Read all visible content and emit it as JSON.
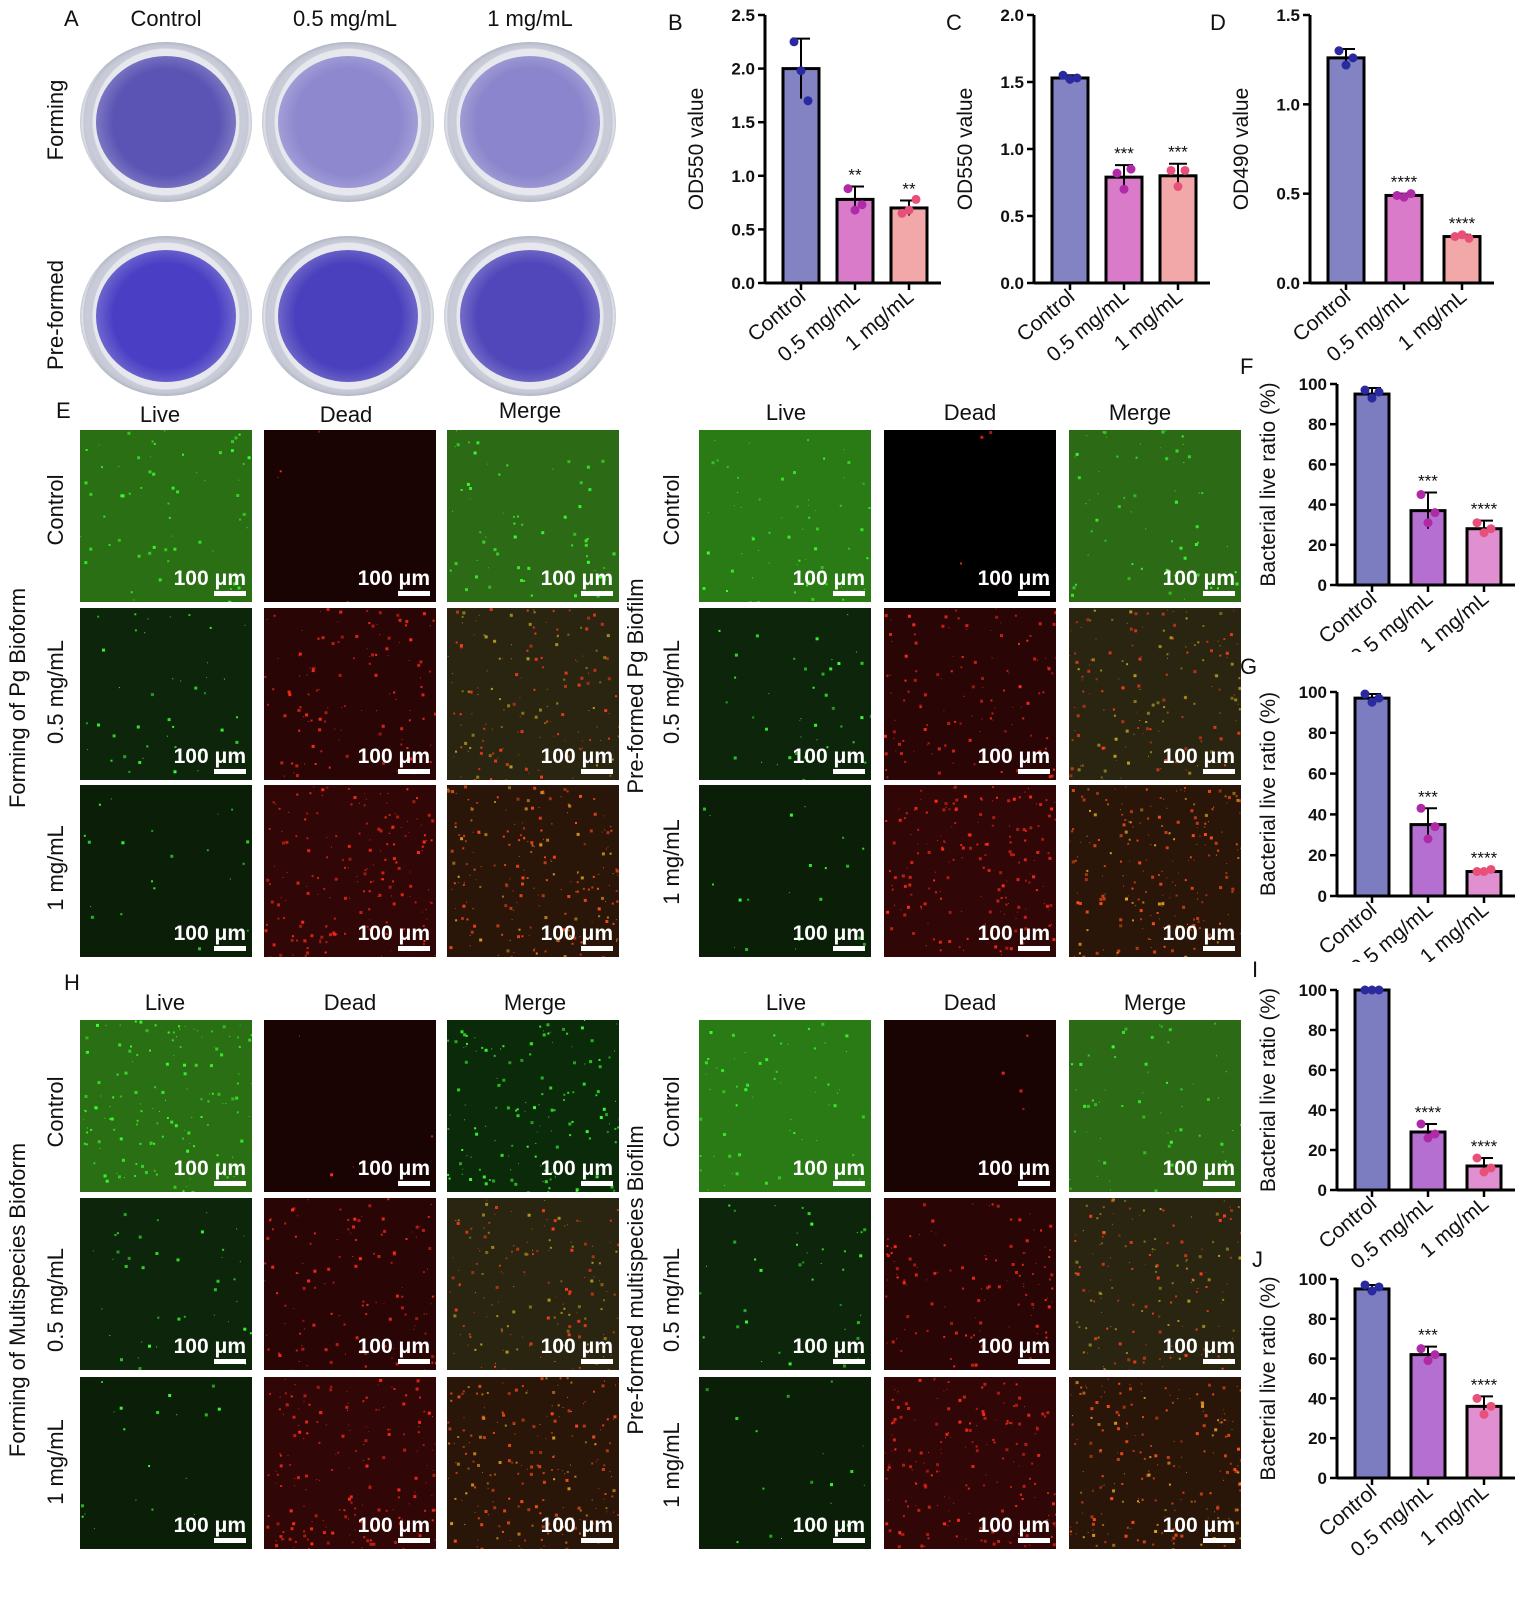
{
  "panels": {
    "A": {
      "letter": "A",
      "columns": [
        "Control",
        "0.5 mg/mL",
        "1 mg/mL"
      ],
      "rows": [
        "Forming",
        "Pre-formed"
      ],
      "dish_colors": {
        "forming": [
          "#5b54b4",
          "#8e88cf",
          "#8a85cc"
        ],
        "preformed": [
          "#4a3fc4",
          "#4a40bd",
          "#5147bb"
        ]
      }
    },
    "E": {
      "letter": "E",
      "left_columns": [
        "Live",
        "Dead",
        "Merge"
      ],
      "right_columns": [
        "Live",
        "Dead",
        "Merge"
      ],
      "left_group": "Forming of Pg Bioform",
      "right_group": "Pre-formed Pg  Biofilm",
      "rows": [
        "Control",
        "0.5 mg/mL",
        "1 mg/mL"
      ],
      "scale_label": "100 μm"
    },
    "H": {
      "letter": "H",
      "left_columns": [
        "Live",
        "Dead",
        "Merge"
      ],
      "right_columns": [
        "Live",
        "Dead",
        "Merge"
      ],
      "left_group": "Forming of Multispecies  Bioform",
      "right_group": "Pre-formed multispecies  Biofilm",
      "rows": [
        "Control",
        "0.5 mg/mL",
        "1 mg/mL"
      ],
      "scale_label": "100 μm"
    }
  },
  "chart_data": [
    {
      "id": "B",
      "letter": "B",
      "type": "bar",
      "categories": [
        "Control",
        "0.5 mg/mL",
        "1 mg/mL"
      ],
      "values": [
        2.0,
        0.78,
        0.7
      ],
      "errors": [
        0.28,
        0.12,
        0.07
      ],
      "points": [
        [
          2.25,
          1.98,
          1.7
        ],
        [
          0.88,
          0.68,
          0.73
        ],
        [
          0.65,
          0.68,
          0.78
        ]
      ],
      "significance": [
        "",
        "**",
        "**"
      ],
      "ylabel": "OD550 value",
      "ylim": [
        0,
        2.5
      ],
      "yticks": [
        "0.0",
        "0.5",
        "1.0",
        "1.5",
        "2.0",
        "2.5"
      ],
      "colors": [
        "#8383c4",
        "#d97bc8",
        "#f2a8a8"
      ]
    },
    {
      "id": "C",
      "letter": "C",
      "type": "bar",
      "categories": [
        "Control",
        "0.5 mg/mL",
        "1 mg/mL"
      ],
      "values": [
        1.53,
        0.79,
        0.8
      ],
      "errors": [
        0.02,
        0.09,
        0.09
      ],
      "points": [
        [
          1.55,
          1.52,
          1.53
        ],
        [
          0.82,
          0.7,
          0.85
        ],
        [
          0.84,
          0.72,
          0.84
        ]
      ],
      "significance": [
        "",
        "***",
        "***"
      ],
      "ylabel": "OD550 value",
      "ylim": [
        0,
        2.0
      ],
      "yticks": [
        "0.0",
        "0.5",
        "1.0",
        "1.5",
        "2.0"
      ],
      "colors": [
        "#8383c4",
        "#d97bc8",
        "#f2a8a8"
      ]
    },
    {
      "id": "D",
      "letter": "D",
      "type": "bar",
      "categories": [
        "Control",
        "0.5 mg/mL",
        "1 mg/mL"
      ],
      "values": [
        1.26,
        0.49,
        0.26
      ],
      "errors": [
        0.05,
        0.01,
        0.01
      ],
      "points": [
        [
          1.3,
          1.22,
          1.26
        ],
        [
          0.49,
          0.48,
          0.5
        ],
        [
          0.26,
          0.27,
          0.25
        ]
      ],
      "significance": [
        "",
        "****",
        "****"
      ],
      "ylabel": "OD490 value",
      "ylim": [
        0,
        1.5
      ],
      "yticks": [
        "0.0",
        "0.5",
        "1.0",
        "1.5"
      ],
      "colors": [
        "#8383c4",
        "#d97bc8",
        "#f2a8a8"
      ]
    },
    {
      "id": "F",
      "letter": "F",
      "type": "bar",
      "categories": [
        "Control",
        "0.5 mg/mL",
        "1 mg/mL"
      ],
      "values": [
        95,
        37,
        28
      ],
      "errors": [
        3,
        9,
        4
      ],
      "points": [
        [
          97,
          93,
          96
        ],
        [
          45,
          31,
          36
        ],
        [
          31,
          26,
          28
        ]
      ],
      "significance": [
        "",
        "***",
        "****"
      ],
      "ylabel": "Bacterial live ratio (%)",
      "ylim": [
        0,
        100
      ],
      "yticks": [
        "0",
        "20",
        "40",
        "60",
        "80",
        "100"
      ],
      "colors": [
        "#7c7cc0",
        "#b46fd0",
        "#e08fd0"
      ]
    },
    {
      "id": "G",
      "letter": "G",
      "type": "bar",
      "categories": [
        "Control",
        "0.5 mg/mL",
        "1 mg/mL"
      ],
      "values": [
        97,
        35,
        12
      ],
      "errors": [
        2,
        8,
        1
      ],
      "points": [
        [
          99,
          95,
          97
        ],
        [
          43,
          28,
          34
        ],
        [
          12,
          12,
          13
        ]
      ],
      "significance": [
        "",
        "***",
        "****"
      ],
      "ylabel": "Bacterial live ratio (%)",
      "ylim": [
        0,
        100
      ],
      "yticks": [
        "0",
        "20",
        "40",
        "60",
        "80",
        "100"
      ],
      "colors": [
        "#7c7cc0",
        "#b46fd0",
        "#e08fd0"
      ]
    },
    {
      "id": "I",
      "letter": "I",
      "type": "bar",
      "categories": [
        "Control",
        "0.5 mg/mL",
        "1 mg/mL"
      ],
      "values": [
        100,
        29,
        12
      ],
      "errors": [
        0.5,
        4,
        4
      ],
      "points": [
        [
          100,
          100,
          100
        ],
        [
          33,
          26,
          28
        ],
        [
          16,
          9,
          11
        ]
      ],
      "significance": [
        "",
        "****",
        "****"
      ],
      "ylabel": "Bacterial live ratio (%)",
      "ylim": [
        0,
        100
      ],
      "yticks": [
        "0",
        "20",
        "40",
        "60",
        "80",
        "100"
      ],
      "colors": [
        "#7c7cc0",
        "#b46fd0",
        "#e08fd0"
      ]
    },
    {
      "id": "J",
      "letter": "J",
      "type": "bar",
      "categories": [
        "Control",
        "0.5 mg/mL",
        "1 mg/mL"
      ],
      "values": [
        95,
        62,
        36
      ],
      "errors": [
        2,
        4,
        5
      ],
      "points": [
        [
          97,
          94,
          96
        ],
        [
          65,
          59,
          62
        ],
        [
          40,
          32,
          36
        ]
      ],
      "significance": [
        "",
        "***",
        "****"
      ],
      "ylabel": "Bacterial live ratio (%)",
      "ylim": [
        0,
        100
      ],
      "yticks": [
        "0",
        "20",
        "40",
        "60",
        "80",
        "100"
      ],
      "colors": [
        "#7c7cc0",
        "#b46fd0",
        "#e08fd0"
      ]
    }
  ]
}
